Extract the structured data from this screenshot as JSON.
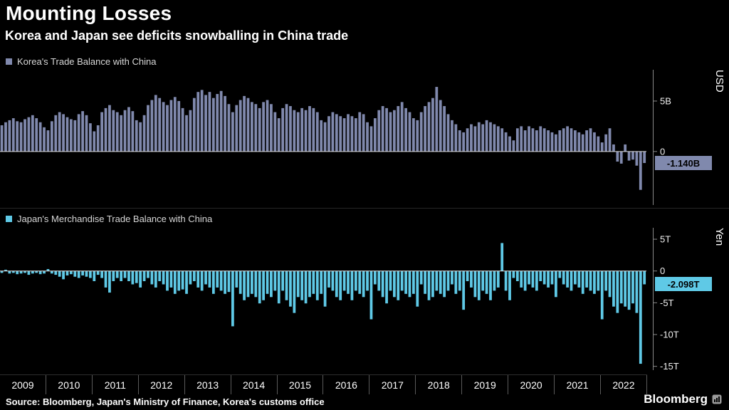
{
  "header": {
    "title": "Mounting Losses",
    "subtitle": "Korea and Japan see deficits snowballing in China trade"
  },
  "x_axis": {
    "years": [
      "2009",
      "2010",
      "2011",
      "2012",
      "2013",
      "2014",
      "2015",
      "2016",
      "2017",
      "2018",
      "2019",
      "2020",
      "2021",
      "2022"
    ]
  },
  "chart_data": [
    {
      "type": "bar",
      "name": "korea",
      "title": "Korea's Trade Balance with China",
      "unit_axis_label": "USD",
      "color": "#8089AD",
      "last_value_label": "-1.140B",
      "legend_position": "top-left",
      "grid": false,
      "ylim": [
        -5.3,
        8.1
      ],
      "yticks": [
        {
          "v": 5,
          "label": "5B"
        },
        {
          "v": 0,
          "label": "0"
        }
      ],
      "x_start_year": 2009,
      "x_frequency": "monthly",
      "monthly_values": [
        2.6,
        2.9,
        3.1,
        3.3,
        3.0,
        2.9,
        3.2,
        3.4,
        3.6,
        3.3,
        2.9,
        2.4,
        2.1,
        3.0,
        3.6,
        3.9,
        3.7,
        3.4,
        3.2,
        3.1,
        3.7,
        4.0,
        3.6,
        2.8,
        2.0,
        2.6,
        3.9,
        4.3,
        4.6,
        4.1,
        3.9,
        3.6,
        4.1,
        4.4,
        4.0,
        3.1,
        2.9,
        3.6,
        4.6,
        5.1,
        5.6,
        5.3,
        4.9,
        4.6,
        5.1,
        5.4,
        5.0,
        4.3,
        3.6,
        4.1,
        5.3,
        5.9,
        6.1,
        5.6,
        5.9,
        5.3,
        5.7,
        6.0,
        5.5,
        4.7,
        3.9,
        4.6,
        5.1,
        5.5,
        5.3,
        4.9,
        4.7,
        4.3,
        4.9,
        5.1,
        4.7,
        3.9,
        3.3,
        4.3,
        4.7,
        4.5,
        4.1,
        3.9,
        4.3,
        4.1,
        4.5,
        4.3,
        3.9,
        3.1,
        2.9,
        3.5,
        3.9,
        3.7,
        3.5,
        3.3,
        3.7,
        3.5,
        3.3,
        3.9,
        3.7,
        2.9,
        2.5,
        3.3,
        4.1,
        4.5,
        4.3,
        3.9,
        4.1,
        4.5,
        4.9,
        4.3,
        3.9,
        3.3,
        3.1,
        3.9,
        4.5,
        4.9,
        5.3,
        6.4,
        5.1,
        4.5,
        3.7,
        3.1,
        2.7,
        2.1,
        1.9,
        2.3,
        2.7,
        2.5,
        2.9,
        2.7,
        3.1,
        2.9,
        2.7,
        2.5,
        2.3,
        1.9,
        1.5,
        1.1,
        2.3,
        2.5,
        2.1,
        2.5,
        2.3,
        2.1,
        2.5,
        2.3,
        2.1,
        1.9,
        1.7,
        2.1,
        2.3,
        2.5,
        2.3,
        2.1,
        1.9,
        1.7,
        2.1,
        2.3,
        1.9,
        1.5,
        0.9,
        1.7,
        2.3,
        0.7,
        -1.0,
        -1.2,
        0.7,
        -0.9,
        -0.8,
        -1.4,
        -3.8,
        -1.14
      ]
    },
    {
      "type": "bar",
      "name": "japan",
      "title": "Japan's Merchandise Trade Balance with China",
      "unit_axis_label": "Yen",
      "color": "#5FC9E6",
      "last_value_label": "-2.098T",
      "legend_position": "top-left",
      "grid": false,
      "ylim": [
        -15.6,
        6.8
      ],
      "yticks": [
        {
          "v": 5,
          "label": "5T"
        },
        {
          "v": 0,
          "label": "0"
        },
        {
          "v": -5,
          "label": "-5T"
        },
        {
          "v": -10,
          "label": "-10T"
        },
        {
          "v": -15,
          "label": "-15T"
        }
      ],
      "x_start_year": 2009,
      "x_frequency": "monthly",
      "monthly_values": [
        -0.3,
        0.2,
        -0.4,
        -0.3,
        -0.5,
        -0.4,
        -0.3,
        -0.6,
        -0.4,
        -0.3,
        -0.5,
        -0.4,
        0.3,
        -0.4,
        -0.6,
        -0.9,
        -1.3,
        -0.7,
        -0.5,
        -0.9,
        -1.1,
        -0.7,
        -0.9,
        -1.1,
        -1.6,
        -0.6,
        -1.1,
        -2.6,
        -3.4,
        -1.6,
        -1.1,
        -1.6,
        -1.1,
        -1.6,
        -2.1,
        -1.9,
        -2.6,
        -1.6,
        -1.1,
        -2.1,
        -2.6,
        -1.6,
        -2.1,
        -3.1,
        -2.6,
        -3.6,
        -3.1,
        -2.9,
        -3.6,
        -2.1,
        -1.6,
        -2.6,
        -3.1,
        -2.1,
        -2.6,
        -3.6,
        -2.6,
        -3.1,
        -3.6,
        -3.3,
        -8.7,
        -2.6,
        -3.6,
        -4.6,
        -4.1,
        -3.6,
        -4.1,
        -5.1,
        -4.6,
        -3.6,
        -4.1,
        -3.1,
        -5.1,
        -3.1,
        -4.6,
        -5.6,
        -6.6,
        -4.1,
        -4.6,
        -5.1,
        -4.1,
        -3.6,
        -4.6,
        -3.6,
        -5.6,
        -2.6,
        -3.1,
        -4.1,
        -4.6,
        -3.1,
        -3.6,
        -4.6,
        -3.1,
        -3.6,
        -4.1,
        -3.1,
        -7.6,
        -2.1,
        -3.1,
        -4.1,
        -5.1,
        -3.1,
        -4.1,
        -4.6,
        -3.1,
        -3.6,
        -4.1,
        -3.6,
        -5.6,
        -2.1,
        -3.6,
        -4.6,
        -4.1,
        -3.1,
        -3.6,
        -4.1,
        -3.1,
        -2.1,
        -3.6,
        -3.1,
        -6.1,
        -1.6,
        -2.6,
        -4.1,
        -4.6,
        -3.1,
        -3.6,
        -4.6,
        -3.1,
        -2.6,
        4.4,
        -3.1,
        -4.6,
        -1.1,
        -1.6,
        -2.6,
        -3.1,
        -2.1,
        -2.6,
        -3.1,
        -1.6,
        -2.1,
        -2.6,
        -2.1,
        -4.1,
        -1.1,
        -2.1,
        -2.6,
        -3.1,
        -2.1,
        -2.6,
        -3.6,
        -2.6,
        -3.1,
        -3.6,
        -3.1,
        -7.6,
        -3.1,
        -4.1,
        -5.6,
        -6.6,
        -5.1,
        -5.6,
        -6.1,
        -5.1,
        -6.6,
        -14.6,
        -2.098
      ]
    }
  ],
  "footer": {
    "source": "Source: Bloomberg, Japan's Ministry of Finance, Korea's customs office",
    "brand": "Bloomberg"
  },
  "colors": {
    "background": "#000000",
    "korea_bars": "#8089AD",
    "japan_bars": "#5FC9E6",
    "zero_line": "#DEDEDE",
    "axis": "#8A8A8A",
    "text": "#FFFFFF"
  }
}
